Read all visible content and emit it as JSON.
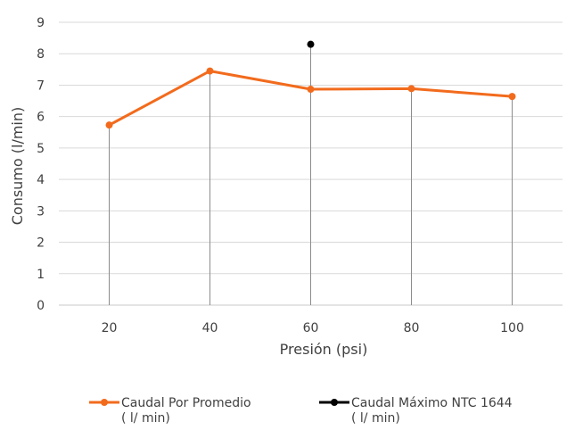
{
  "chart_data": {
    "type": "line",
    "title": "",
    "xlabel": "Presión (psi)",
    "ylabel": "Consumo (l/min)",
    "categories": [
      "20",
      "40",
      "60",
      "80",
      "100"
    ],
    "ylim": [
      0,
      9
    ],
    "y_ticks": [
      "0",
      "1",
      "2",
      "3",
      "4",
      "5",
      "6",
      "7",
      "8",
      "9"
    ],
    "grid": true,
    "drop_lines": true,
    "legend_position": "bottom",
    "series": [
      {
        "name": "Caudal Por Promedio ( l/ min)",
        "legend_lines": [
          "Caudal Por Promedio",
          "( l/ min)"
        ],
        "color": "#F26B1D",
        "values": [
          5.73,
          7.45,
          6.87,
          6.89,
          6.64
        ]
      },
      {
        "name": "Caudal Máximo NTC 1644 ( l/ min)",
        "legend_lines": [
          "Caudal Máximo NTC 1644",
          "( l/ min)"
        ],
        "color": "#000000",
        "values": [
          null,
          null,
          8.3,
          null,
          null
        ]
      }
    ]
  }
}
